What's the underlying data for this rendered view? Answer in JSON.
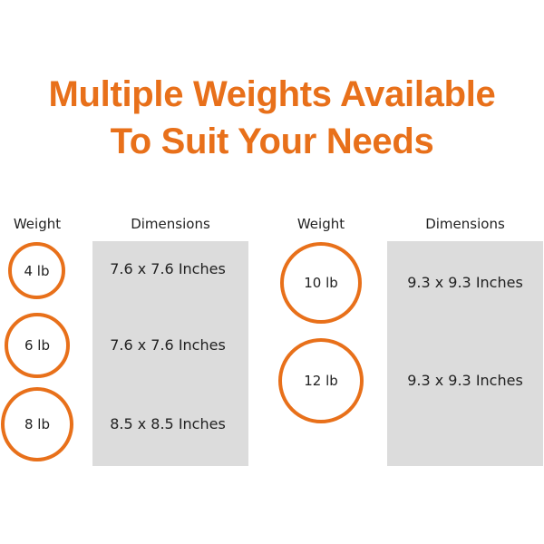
{
  "title": {
    "line1": "Multiple Weights Available",
    "line2": "To Suit Your Needs"
  },
  "headers": {
    "weight": "Weight",
    "dimensions": "Dimensions"
  },
  "left": [
    {
      "weight": "4 lb",
      "dim": "7.6 x 7.6 Inches"
    },
    {
      "weight": "6 lb",
      "dim": "7.6 x 7.6 Inches"
    },
    {
      "weight": "8 lb",
      "dim": "8.5 x 8.5 Inches"
    }
  ],
  "right": [
    {
      "weight": "10 lb",
      "dim": "9.3 x 9.3 Inches"
    },
    {
      "weight": "12 lb",
      "dim": "9.3 x 9.3 Inches"
    }
  ],
  "accent": "#e8701a"
}
